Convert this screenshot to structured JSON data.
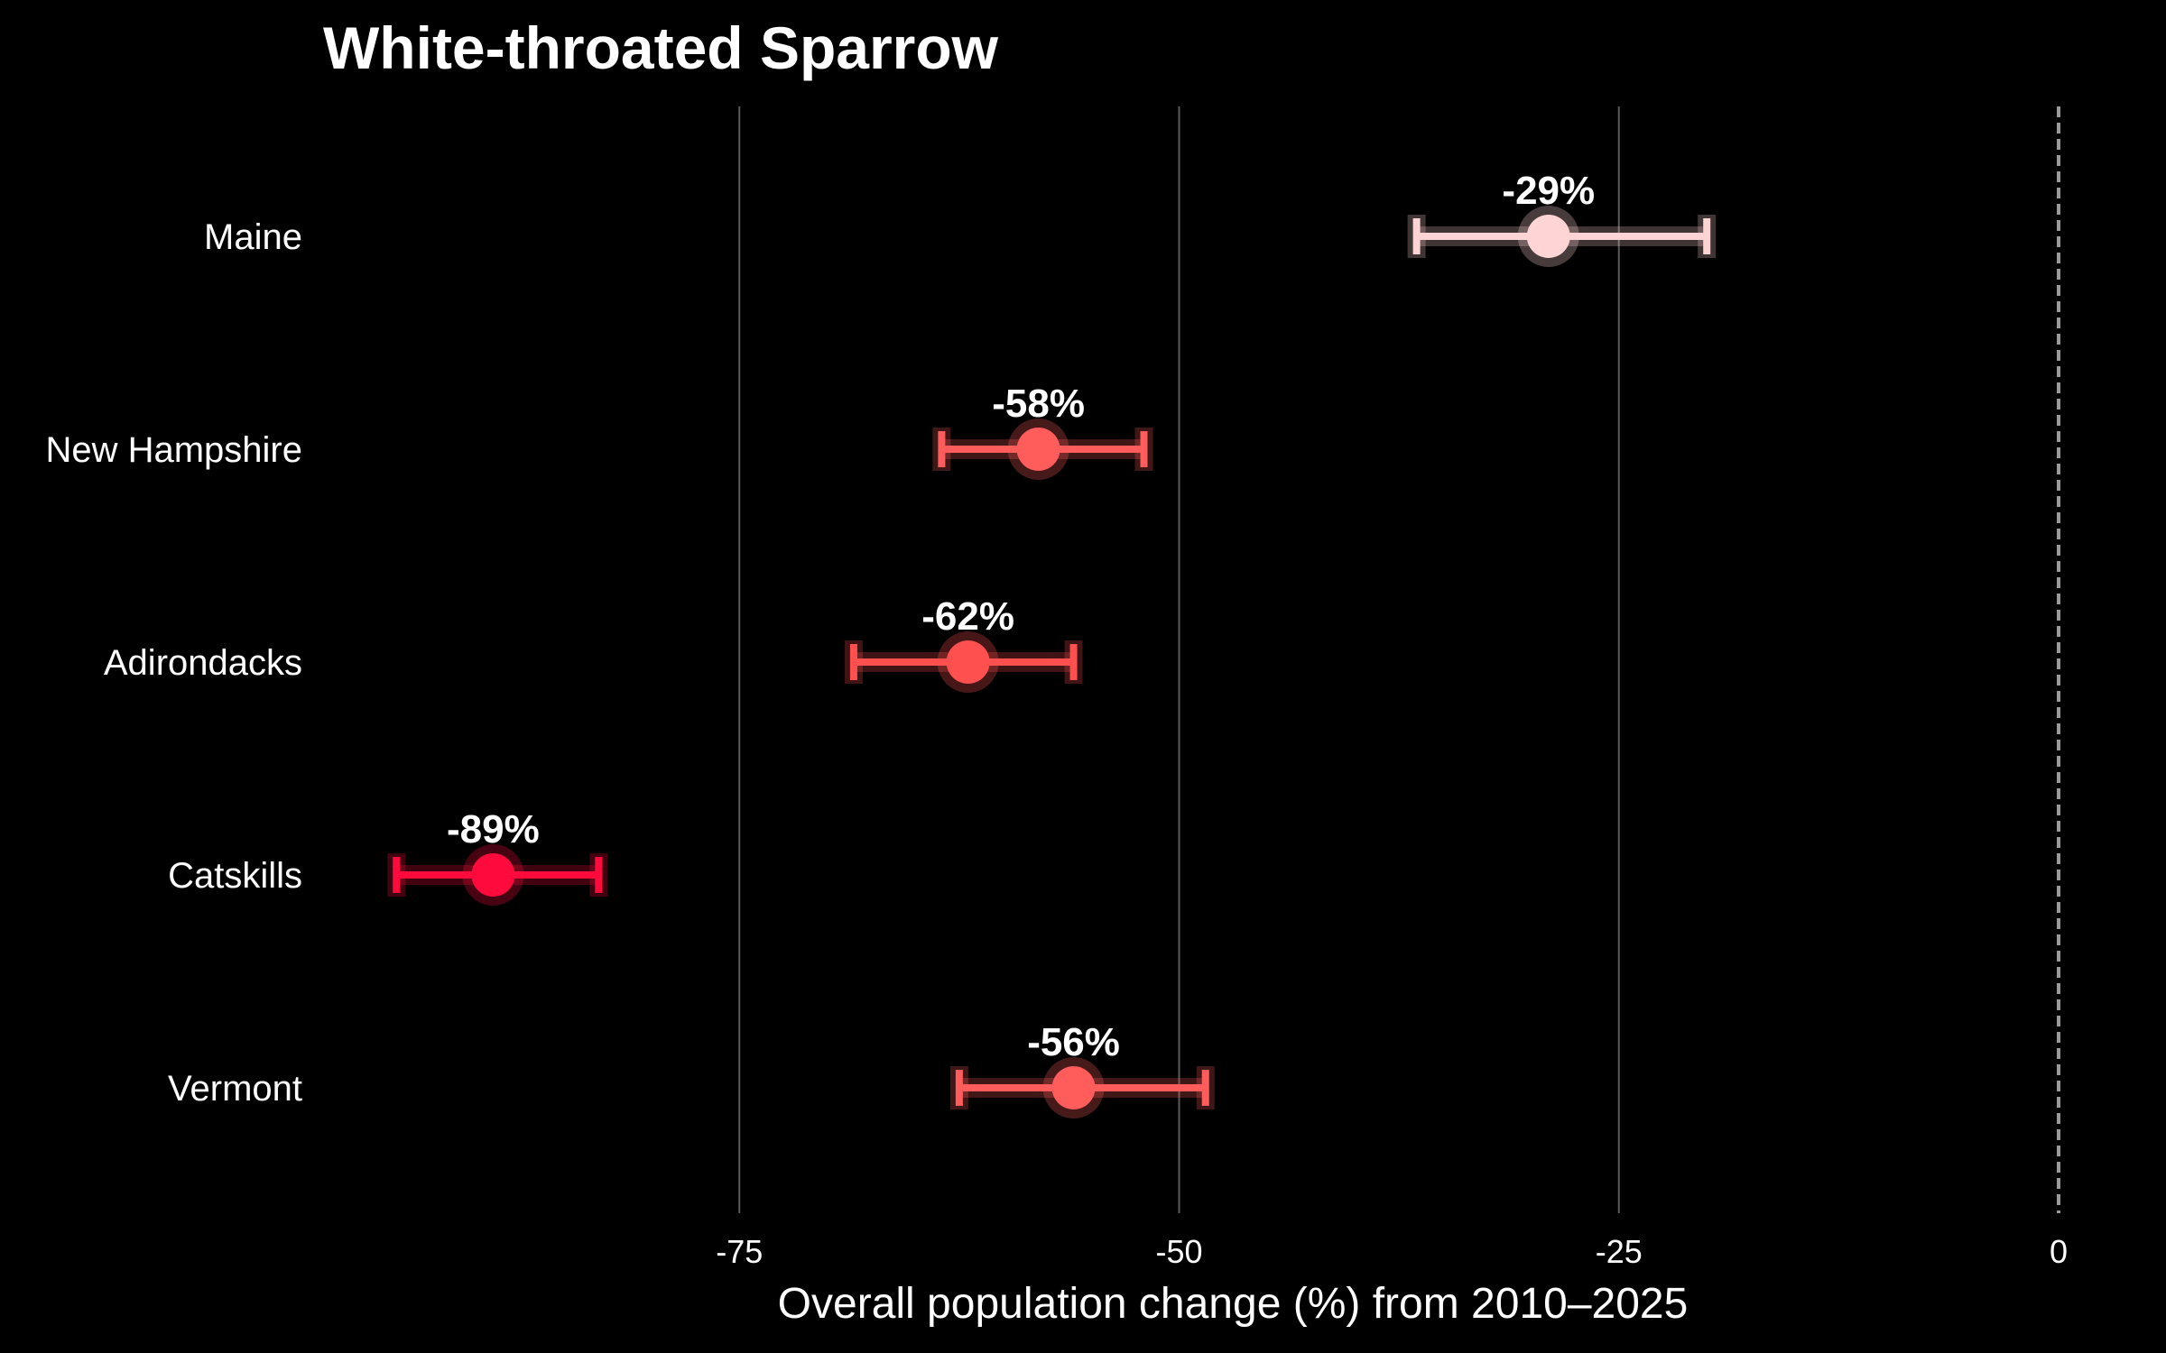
{
  "chart_data": {
    "type": "scatter",
    "subtype": "dot-with-error-bars",
    "title": "White-throated Sparrow",
    "xlabel": "Overall population change (%) from 2010–2025",
    "ylabel": "",
    "xlim": [
      -100,
      0
    ],
    "xticks": [
      -75,
      -50,
      -25,
      0
    ],
    "xtick_labels": [
      "-75",
      "-50",
      "-25",
      "0"
    ],
    "grid": "vertical",
    "reference_line": {
      "x": 0,
      "style": "dashed"
    },
    "categories": [
      "Maine",
      "New Hampshire",
      "Adirondacks",
      "Catskills",
      "Vermont"
    ],
    "values": [
      -29,
      -58,
      -62,
      -89,
      -56
    ],
    "ci_low": [
      -36.5,
      -63.5,
      -68.5,
      -94.5,
      -62.5
    ],
    "ci_high": [
      -20,
      -52,
      -56,
      -83,
      -48.5
    ],
    "value_labels": [
      "-29%",
      "-58%",
      "-62%",
      "-89%",
      "-56%"
    ],
    "point_colors": [
      "#ffd4d4",
      "#ff5c5c",
      "#ff5050",
      "#ff0a3c",
      "#ff5c5c"
    ]
  }
}
